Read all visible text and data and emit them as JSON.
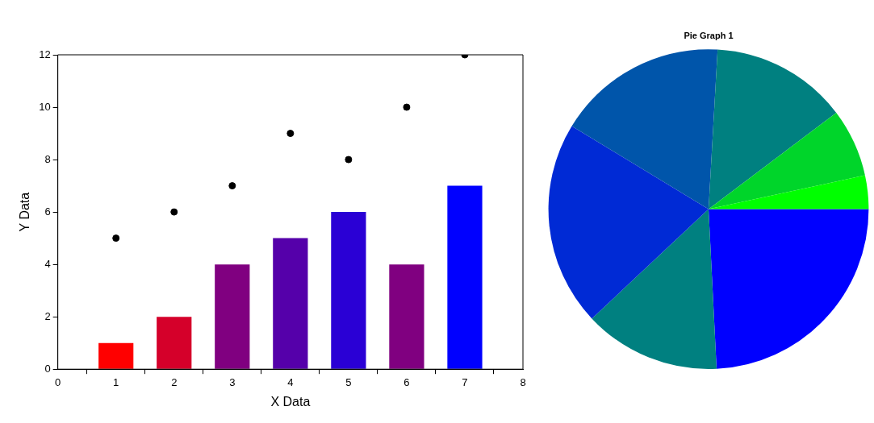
{
  "chart_data": [
    {
      "type": "bar",
      "xlabel": "X Data",
      "ylabel": "Y Data",
      "x": [
        1,
        2,
        3,
        4,
        5,
        6,
        7
      ],
      "xlim": [
        0,
        8
      ],
      "xticks": [
        0,
        1,
        2,
        3,
        4,
        5,
        6,
        7,
        8
      ],
      "ylim": [
        0,
        12
      ],
      "yticks": [
        0,
        2,
        4,
        6,
        8,
        10,
        12
      ],
      "legend": false,
      "series": [
        {
          "type": "bar",
          "colors": [
            "#ff0000",
            "#d5002a",
            "#800080",
            "#5500aa",
            "#2a00d5",
            "#800080",
            "#0000ff"
          ],
          "values": [
            1,
            2,
            4,
            5,
            6,
            4,
            7
          ]
        },
        {
          "type": "scatter",
          "color": "#000000",
          "marker": "circle",
          "values": [
            5,
            6,
            7,
            9,
            8,
            10,
            12
          ]
        }
      ]
    },
    {
      "type": "pie",
      "title": "Pie Graph 1",
      "legend": false,
      "categories": [
        null,
        null,
        null,
        null,
        null,
        null,
        null
      ],
      "values": [
        24.2,
        13.8,
        20.7,
        17.2,
        13.8,
        6.9,
        3.4
      ],
      "colors": [
        "#0000ff",
        "#008080",
        "#002ad5",
        "#0055aa",
        "#008080",
        "#00d52a",
        "#00ff00"
      ]
    }
  ]
}
